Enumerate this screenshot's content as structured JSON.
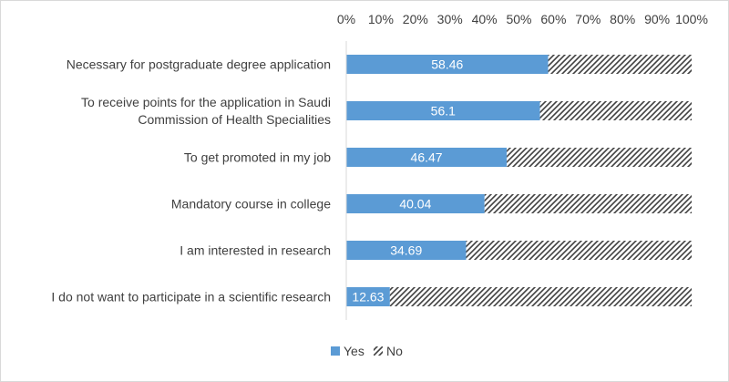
{
  "chart_data": {
    "type": "bar",
    "orientation": "horizontal",
    "stacked": true,
    "percent_stacked": true,
    "categories": [
      "Necessary for postgraduate degree application",
      "To receive points for the application in Saudi Commission of Health Specialities",
      "To get promoted in my job",
      "Mandatory course in college",
      "I am interested in research",
      "I do not want to participate in a scientific research"
    ],
    "category_lines": [
      [
        "Necessary for postgraduate degree application"
      ],
      [
        "To receive points for the application in Saudi",
        "Commission of Health Specialities"
      ],
      [
        "To get promoted in my job"
      ],
      [
        "Mandatory course in college"
      ],
      [
        "I am interested in research"
      ],
      [
        "I do not want to participate in a scientific research"
      ]
    ],
    "series": [
      {
        "name": "Yes",
        "values": [
          58.46,
          56.1,
          46.47,
          40.04,
          34.69,
          12.63
        ],
        "color": "#5b9bd5",
        "pattern": "solid"
      },
      {
        "name": "No",
        "values": [
          41.54,
          43.9,
          53.53,
          59.96,
          65.31,
          87.37
        ],
        "color": "#404040",
        "pattern": "diagonal-hatch"
      }
    ],
    "data_labels": [
      "58.46",
      "56.1",
      "46.47",
      "40.04",
      "34.69",
      "12.63"
    ],
    "x_ticks": [
      "0%",
      "10%",
      "20%",
      "30%",
      "40%",
      "50%",
      "60%",
      "70%",
      "80%",
      "90%",
      "100%"
    ],
    "xlim": [
      0,
      100
    ],
    "x_axis_position": "top",
    "grid": false,
    "legend_position": "bottom",
    "title": "",
    "xlabel": "",
    "ylabel": ""
  }
}
